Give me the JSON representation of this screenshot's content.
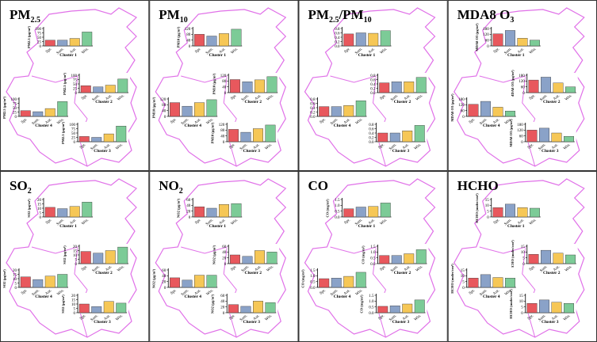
{
  "colors": {
    "spring": "#e8585d",
    "summer": "#8aa2c8",
    "autumn": "#f6c756",
    "winter": "#7ccb97",
    "map_outline": "#e070e8",
    "frame": "#333333"
  },
  "seasons": [
    "Spr.",
    "Sum.",
    "Aut.",
    "Win."
  ],
  "chart_data": [
    {
      "type": "bar",
      "title": "PM",
      "title_sub": "2.5",
      "title_tail": "",
      "clusters": [
        {
          "label": "Cluster 1",
          "ylabel": "PM2.5 (μg/m³)",
          "ylim": [
            0,
            100
          ],
          "ticks": [
            "0",
            "25",
            "50",
            "75",
            "100"
          ],
          "values": [
            33,
            33,
            43,
            80
          ]
        },
        {
          "label": "Cluster 2",
          "ylabel": "PM2.5 (μg/m³)",
          "ylim": [
            0,
            100
          ],
          "ticks": [
            "0",
            "25",
            "50",
            "75",
            "100"
          ],
          "values": [
            40,
            33,
            43,
            78
          ]
        },
        {
          "label": "Cluster 3",
          "ylabel": "PM2.5 (μg/m³)",
          "ylim": [
            0,
            100
          ],
          "ticks": [
            "0",
            "25",
            "50",
            "75",
            "100"
          ],
          "values": [
            30,
            25,
            45,
            90
          ]
        },
        {
          "label": "Cluster 4",
          "ylabel": "PM2.5 (μg/m³)",
          "ylim": [
            0,
            100
          ],
          "ticks": [
            "0",
            "25",
            "50",
            "75",
            "100"
          ],
          "values": [
            33,
            27,
            45,
            85
          ]
        }
      ]
    },
    {
      "type": "bar",
      "title": "PM",
      "title_sub": "10",
      "title_tail": "",
      "clusters": [
        {
          "label": "Cluster 1",
          "ylabel": "PM10 (μg/m³)",
          "ylim": [
            0,
            120
          ],
          "ticks": [
            "0",
            "40",
            "80",
            "120"
          ],
          "values": [
            80,
            68,
            85,
            115
          ]
        },
        {
          "label": "Cluster 2",
          "ylabel": "PM10 (μg/m³)",
          "ylim": [
            0,
            120
          ],
          "ticks": [
            "0",
            "40",
            "80",
            "120"
          ],
          "values": [
            90,
            75,
            88,
            110
          ]
        },
        {
          "label": "Cluster 3",
          "ylabel": "PM10 (μg/m³)",
          "ylim": [
            0,
            120
          ],
          "ticks": [
            "0",
            "40",
            "80",
            "120"
          ],
          "values": [
            85,
            65,
            90,
            115
          ]
        },
        {
          "label": "Cluster 4",
          "ylabel": "PM10 (μg/m³)",
          "ylim": [
            0,
            120
          ],
          "ticks": [
            "0",
            "40",
            "80",
            "120"
          ],
          "values": [
            95,
            70,
            95,
            115
          ]
        }
      ]
    },
    {
      "type": "bar",
      "title": "PM",
      "title_sub": "2.5",
      "title_tail": "/PM",
      "title_sub2": "10",
      "clusters": [
        {
          "label": "Cluster 1",
          "ylabel": "",
          "ylim": [
            0,
            0.8
          ],
          "ticks": [
            "0.0",
            "0.2",
            "0.4",
            "0.6",
            "0.8"
          ],
          "values": [
            0.55,
            0.6,
            0.58,
            0.7
          ]
        },
        {
          "label": "Cluster 2",
          "ylabel": "",
          "ylim": [
            0,
            0.8
          ],
          "ticks": [
            "0.0",
            "0.2",
            "0.4",
            "0.6",
            "0.8"
          ],
          "values": [
            0.45,
            0.5,
            0.5,
            0.7
          ]
        },
        {
          "label": "Cluster 3",
          "ylabel": "",
          "ylim": [
            0,
            0.8
          ],
          "ticks": [
            "0.0",
            "0.2",
            "0.4",
            "0.6",
            "0.8"
          ],
          "values": [
            0.4,
            0.4,
            0.5,
            0.75
          ]
        },
        {
          "label": "Cluster 4",
          "ylabel": "",
          "ylim": [
            0,
            0.8
          ],
          "ticks": [
            "0.0",
            "0.2",
            "0.4",
            "0.6",
            "0.8"
          ],
          "values": [
            0.45,
            0.45,
            0.5,
            0.72
          ]
        }
      ]
    },
    {
      "type": "bar",
      "title": "MDA8 O",
      "title_sub": "3",
      "title_tail": "",
      "clusters": [
        {
          "label": "Cluster 1",
          "ylabel": "MDA8 O3 (μg/m³)",
          "ylim": [
            0,
            180
          ],
          "ticks": [
            "0",
            "60",
            "120",
            "180"
          ],
          "values": [
            125,
            160,
            80,
            60
          ]
        },
        {
          "label": "Cluster 2",
          "ylabel": "MDA8 O3 (μg/m³)",
          "ylim": [
            0,
            180
          ],
          "ticks": [
            "0",
            "60",
            "120",
            "180"
          ],
          "values": [
            130,
            160,
            100,
            60
          ]
        },
        {
          "label": "Cluster 3",
          "ylabel": "MDA8 O3 (μg/m³)",
          "ylim": [
            0,
            180
          ],
          "ticks": [
            "0",
            "60",
            "120",
            "180"
          ],
          "values": [
            120,
            140,
            90,
            55
          ]
        },
        {
          "label": "Cluster 4",
          "ylabel": "MDA8 O3 (μg/m³)",
          "ylim": [
            0,
            180
          ],
          "ticks": [
            "0",
            "60",
            "120",
            "180"
          ],
          "values": [
            125,
            155,
            95,
            55
          ]
        }
      ]
    },
    {
      "type": "bar",
      "title": "SO",
      "title_sub": "2",
      "title_tail": "",
      "clusters": [
        {
          "label": "Cluster 1",
          "ylabel": "SO2 (μg/m³)",
          "ylim": [
            0,
            20
          ],
          "ticks": [
            "0",
            "5",
            "10",
            "15",
            "20"
          ],
          "values": [
            11,
            9.5,
            12,
            17
          ]
        },
        {
          "label": "Cluster 2",
          "ylabel": "SO2 (μg/m³)",
          "ylim": [
            0,
            20
          ],
          "ticks": [
            "0",
            "5",
            "10",
            "15",
            "20"
          ],
          "values": [
            14,
            12,
            15,
            19
          ]
        },
        {
          "label": "Cluster 3",
          "ylabel": "SO2 (μg/m³)",
          "ylim": [
            0,
            20
          ],
          "ticks": [
            "0",
            "5",
            "10",
            "15",
            "20"
          ],
          "values": [
            10,
            7,
            13,
            11
          ]
        },
        {
          "label": "Cluster 4",
          "ylabel": "SO2 (μg/m³)",
          "ylim": [
            0,
            20
          ],
          "ticks": [
            "0",
            "5",
            "10",
            "15",
            "20"
          ],
          "values": [
            12,
            9,
            13,
            15
          ]
        }
      ]
    },
    {
      "type": "bar",
      "title": "NO",
      "title_sub": "2",
      "title_tail": "",
      "clusters": [
        {
          "label": "Cluster 1",
          "ylabel": "NO2 (μg/m³)",
          "ylim": [
            0,
            60
          ],
          "ticks": [
            "0",
            "20",
            "40",
            "60"
          ],
          "values": [
            35,
            30,
            43,
            46
          ]
        },
        {
          "label": "Cluster 2",
          "ylabel": "NO2 (μg/m³)",
          "ylim": [
            0,
            60
          ],
          "ticks": [
            "0",
            "20",
            "40",
            "60"
          ],
          "values": [
            30,
            25,
            45,
            40
          ]
        },
        {
          "label": "Cluster 3",
          "ylabel": "NO2 (μg/m³)",
          "ylim": [
            0,
            60
          ],
          "ticks": [
            "0",
            "20",
            "40",
            "60"
          ],
          "values": [
            28,
            22,
            40,
            35
          ]
        },
        {
          "label": "Cluster 4",
          "ylabel": "NO2 (μg/m³)",
          "ylim": [
            0,
            60
          ],
          "ticks": [
            "0",
            "20",
            "40",
            "60"
          ],
          "values": [
            33,
            25,
            42,
            42
          ]
        }
      ]
    },
    {
      "type": "bar",
      "title": "CO",
      "title_sub": "",
      "title_tail": "",
      "clusters": [
        {
          "label": "Cluster 1",
          "ylabel": "CO (mg/m³)",
          "ylim": [
            0,
            1.5
          ],
          "ticks": [
            "0.0",
            "0.5",
            "1.0",
            "1.5"
          ],
          "values": [
            0.7,
            0.85,
            0.9,
            1.2
          ]
        },
        {
          "label": "Cluster 2",
          "ylabel": "CO (mg/m³)",
          "ylim": [
            0,
            1.5
          ],
          "ticks": [
            "0.0",
            "0.5",
            "1.0",
            "1.5"
          ],
          "values": [
            0.7,
            0.7,
            0.85,
            1.2
          ]
        },
        {
          "label": "Cluster 3",
          "ylabel": "CO (mg/m³)",
          "ylim": [
            0,
            1.5
          ],
          "ticks": [
            "0.0",
            "0.5",
            "1.0",
            "1.5"
          ],
          "values": [
            0.55,
            0.6,
            0.75,
            1.1
          ]
        },
        {
          "label": "Cluster 4",
          "ylabel": "CO (mg/m³)",
          "ylim": [
            0,
            1.5
          ],
          "ticks": [
            "0.0",
            "0.5",
            "1.0",
            "1.5"
          ],
          "values": [
            0.75,
            0.8,
            0.95,
            1.3
          ]
        }
      ]
    },
    {
      "type": "bar",
      "title": "HCHO",
      "title_sub": "",
      "title_tail": "",
      "clusters": [
        {
          "label": "Cluster 1",
          "ylabel": "HCHO (molec/cm²)",
          "ylim": [
            0,
            15
          ],
          "ticks": [
            "0",
            "5",
            "10",
            "15"
          ],
          "values": [
            8,
            11,
            8,
            7.5
          ]
        },
        {
          "label": "Cluster 2",
          "ylabel": "HCHO (molec/cm²)",
          "ylim": [
            0,
            15
          ],
          "ticks": [
            "0",
            "5",
            "10",
            "15"
          ],
          "values": [
            8,
            11.5,
            9,
            7.5
          ]
        },
        {
          "label": "Cluster 3",
          "ylabel": "HCHO (molec/cm²)",
          "ylim": [
            0,
            15
          ],
          "ticks": [
            "0",
            "5",
            "10",
            "15"
          ],
          "values": [
            8,
            11,
            9,
            8
          ]
        },
        {
          "label": "Cluster 4",
          "ylabel": "HCHO (molec/cm²)",
          "ylim": [
            0,
            15
          ],
          "ticks": [
            "0",
            "5",
            "10",
            "15"
          ],
          "values": [
            8,
            11,
            8.5,
            8
          ]
        }
      ]
    }
  ]
}
